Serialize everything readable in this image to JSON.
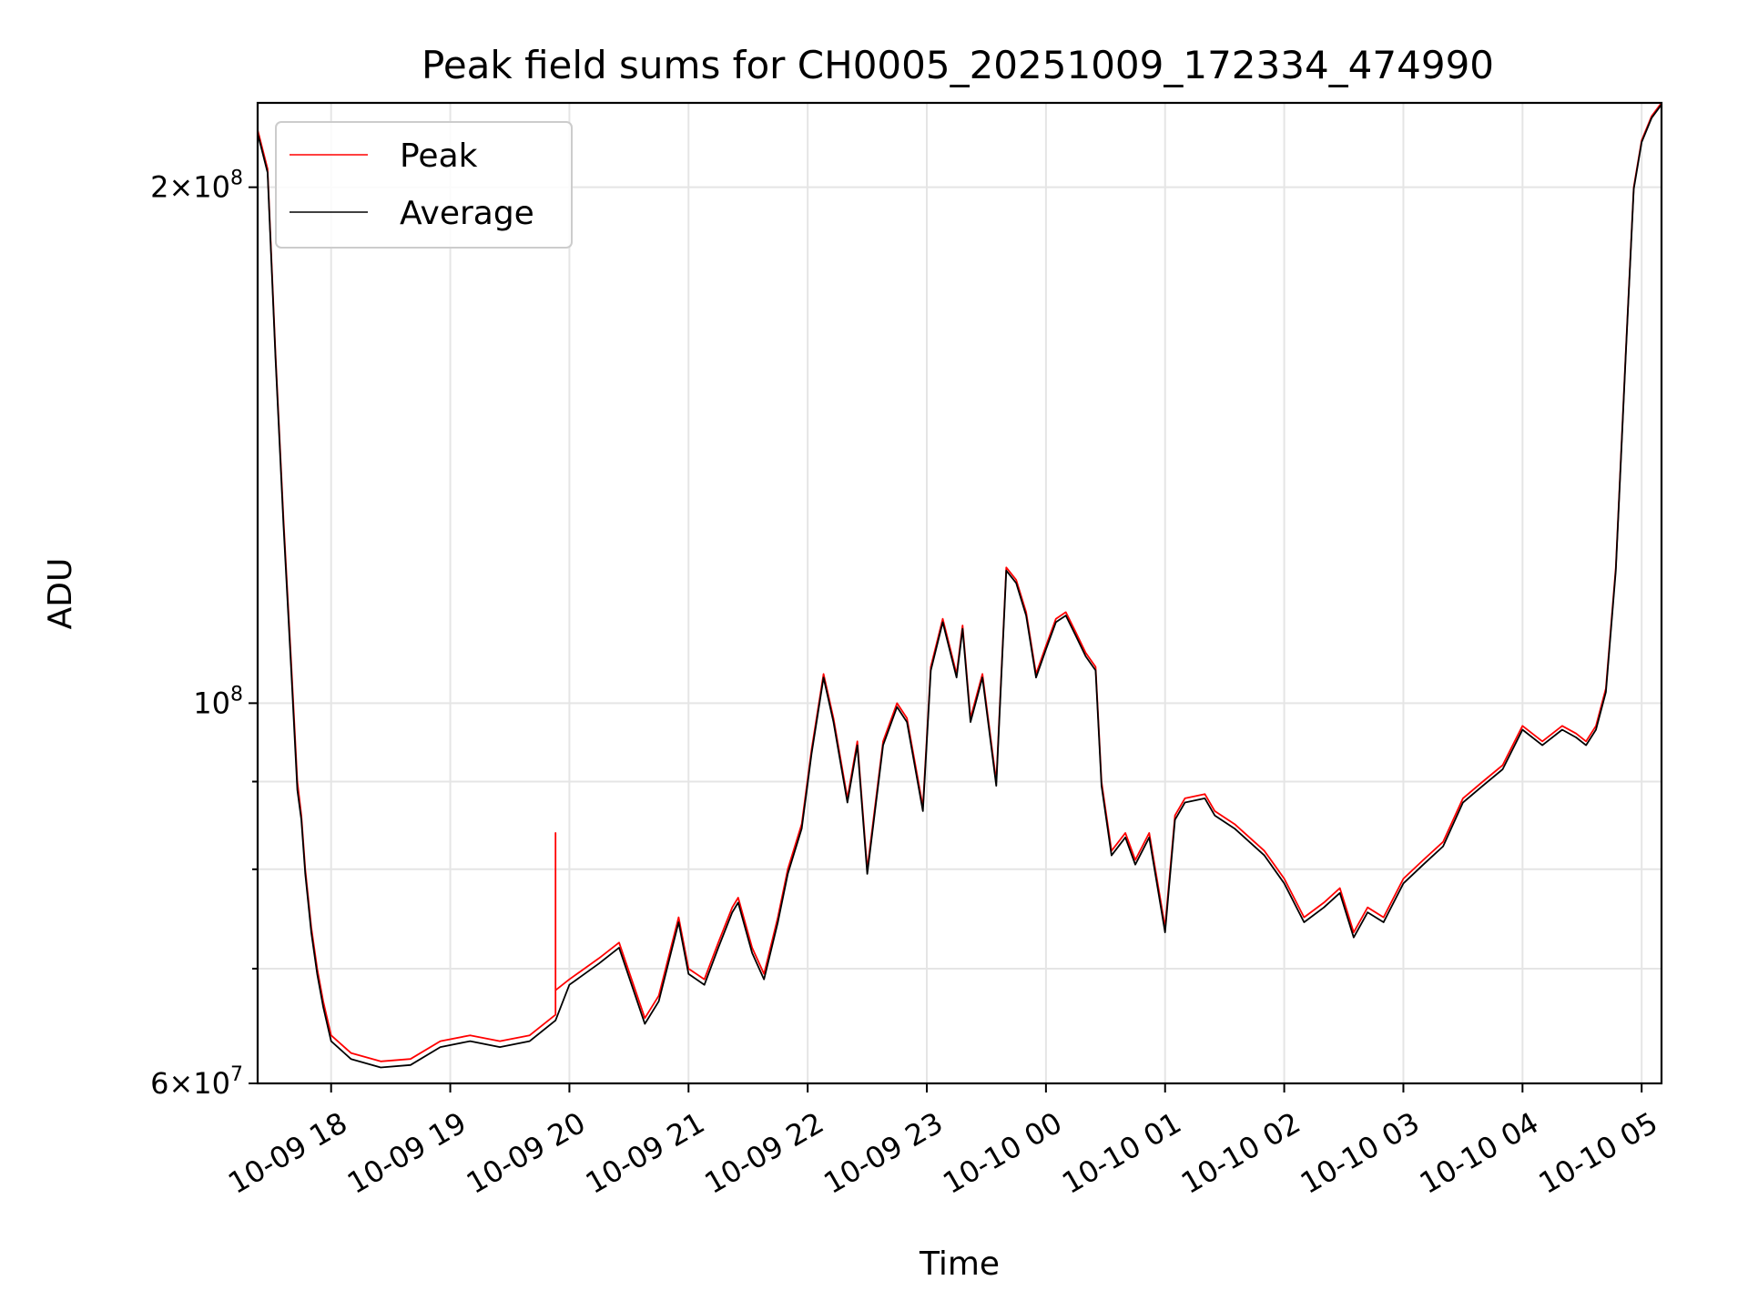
{
  "chart_data": {
    "type": "line",
    "title": "Peak field sums for CH0005_20251009_172334_474990",
    "xlabel": "Time",
    "ylabel": "ADU",
    "x_type": "datetime",
    "xlim": [
      "2025-10-09 17:23",
      "2025-10-10 05:10"
    ],
    "ylim": [
      60000000,
      224000000
    ],
    "yscale": "log",
    "grid": true,
    "legend_position": "upper-left",
    "x_ticks": [
      {
        "value": "2025-10-09 18:00",
        "label": "10-09 18"
      },
      {
        "value": "2025-10-09 19:00",
        "label": "10-09 19"
      },
      {
        "value": "2025-10-09 20:00",
        "label": "10-09 20"
      },
      {
        "value": "2025-10-09 21:00",
        "label": "10-09 21"
      },
      {
        "value": "2025-10-09 22:00",
        "label": "10-09 22"
      },
      {
        "value": "2025-10-09 23:00",
        "label": "10-09 23"
      },
      {
        "value": "2025-10-10 00:00",
        "label": "10-10 00"
      },
      {
        "value": "2025-10-10 01:00",
        "label": "10-10 01"
      },
      {
        "value": "2025-10-10 02:00",
        "label": "10-10 02"
      },
      {
        "value": "2025-10-10 03:00",
        "label": "10-10 03"
      },
      {
        "value": "2025-10-10 04:00",
        "label": "10-10 04"
      },
      {
        "value": "2025-10-10 05:00",
        "label": "10-10 05"
      }
    ],
    "y_major_ticks": [
      {
        "value": 60000000,
        "mantissa": "6",
        "exponent": "7"
      },
      {
        "value": 100000000,
        "mantissa": "",
        "exponent": "8"
      },
      {
        "value": 200000000,
        "mantissa": "2",
        "exponent": "8"
      }
    ],
    "y_minor_ticks": [
      70000000,
      80000000,
      90000000
    ],
    "series": [
      {
        "name": "Peak",
        "color": "#ff0000",
        "x": [
          "2025-10-09 17:23",
          "2025-10-09 17:28",
          "2025-10-09 17:32",
          "2025-10-09 17:36",
          "2025-10-09 17:40",
          "2025-10-09 17:43",
          "2025-10-09 17:45",
          "2025-10-09 17:47",
          "2025-10-09 17:50",
          "2025-10-09 17:53",
          "2025-10-09 17:56",
          "2025-10-09 18:00",
          "2025-10-09 18:10",
          "2025-10-09 18:25",
          "2025-10-09 18:40",
          "2025-10-09 18:55",
          "2025-10-09 19:10",
          "2025-10-09 19:25",
          "2025-10-09 19:40",
          "2025-10-09 19:53",
          "2025-10-09 19:53",
          "2025-10-09 19:53",
          "2025-10-09 20:00",
          "2025-10-09 20:15",
          "2025-10-09 20:25",
          "2025-10-09 20:38",
          "2025-10-09 20:45",
          "2025-10-09 20:55",
          "2025-10-09 21:00",
          "2025-10-09 21:08",
          "2025-10-09 21:15",
          "2025-10-09 21:22",
          "2025-10-09 21:25",
          "2025-10-09 21:32",
          "2025-10-09 21:38",
          "2025-10-09 21:45",
          "2025-10-09 21:50",
          "2025-10-09 21:57",
          "2025-10-09 22:02",
          "2025-10-09 22:08",
          "2025-10-09 22:13",
          "2025-10-09 22:20",
          "2025-10-09 22:25",
          "2025-10-09 22:30",
          "2025-10-09 22:38",
          "2025-10-09 22:45",
          "2025-10-09 22:50",
          "2025-10-09 22:58",
          "2025-10-09 23:02",
          "2025-10-09 23:08",
          "2025-10-09 23:15",
          "2025-10-09 23:18",
          "2025-10-09 23:22",
          "2025-10-09 23:28",
          "2025-10-09 23:35",
          "2025-10-09 23:40",
          "2025-10-09 23:45",
          "2025-10-09 23:50",
          "2025-10-09 23:55",
          "2025-10-10 00:00",
          "2025-10-10 00:05",
          "2025-10-10 00:10",
          "2025-10-10 00:15",
          "2025-10-10 00:20",
          "2025-10-10 00:25",
          "2025-10-10 00:28",
          "2025-10-10 00:33",
          "2025-10-10 00:40",
          "2025-10-10 00:45",
          "2025-10-10 00:52",
          "2025-10-10 01:00",
          "2025-10-10 01:05",
          "2025-10-10 01:10",
          "2025-10-10 01:20",
          "2025-10-10 01:25",
          "2025-10-10 01:35",
          "2025-10-10 01:50",
          "2025-10-10 02:00",
          "2025-10-10 02:10",
          "2025-10-10 02:20",
          "2025-10-10 02:28",
          "2025-10-10 02:35",
          "2025-10-10 02:42",
          "2025-10-10 02:50",
          "2025-10-10 03:00",
          "2025-10-10 03:10",
          "2025-10-10 03:20",
          "2025-10-10 03:30",
          "2025-10-10 03:40",
          "2025-10-10 03:50",
          "2025-10-10 04:00",
          "2025-10-10 04:10",
          "2025-10-10 04:20",
          "2025-10-10 04:27",
          "2025-10-10 04:32",
          "2025-10-10 04:37",
          "2025-10-10 04:42",
          "2025-10-10 04:47",
          "2025-10-10 04:52",
          "2025-10-10 04:56",
          "2025-10-10 05:00",
          "2025-10-10 05:05",
          "2025-10-10 05:10"
        ],
        "values": [
          216000000,
          205000000,
          160000000,
          128000000,
          105000000,
          90000000,
          86000000,
          80000000,
          74000000,
          70000000,
          67000000,
          64000000,
          62500000,
          61800000,
          62000000,
          63500000,
          64000000,
          63500000,
          64000000,
          65800000,
          84000000,
          68000000,
          69000000,
          71000000,
          72500000,
          65500000,
          67500000,
          75000000,
          70000000,
          69000000,
          72500000,
          76000000,
          77000000,
          72000000,
          69500000,
          75000000,
          80000000,
          85000000,
          94000000,
          104000000,
          98000000,
          88000000,
          95000000,
          80000000,
          95000000,
          100000000,
          98000000,
          87000000,
          105000000,
          112000000,
          104000000,
          111000000,
          98000000,
          104000000,
          90000000,
          120000000,
          118000000,
          113000000,
          104000000,
          108000000,
          112000000,
          113000000,
          110000000,
          107000000,
          105000000,
          90000000,
          82000000,
          84000000,
          81000000,
          84000000,
          74000000,
          86000000,
          88000000,
          88500000,
          86500000,
          85000000,
          82000000,
          79000000,
          75000000,
          76500000,
          78000000,
          73500000,
          76000000,
          75000000,
          79000000,
          81000000,
          83000000,
          88000000,
          90000000,
          92000000,
          97000000,
          95000000,
          97000000,
          96000000,
          95000000,
          97000000,
          102000000,
          120000000,
          160000000,
          200000000,
          213000000,
          220000000,
          224000000
        ]
      },
      {
        "name": "Average",
        "color": "#000000",
        "x": [
          "2025-10-09 17:23",
          "2025-10-09 17:28",
          "2025-10-09 17:32",
          "2025-10-09 17:36",
          "2025-10-09 17:40",
          "2025-10-09 17:43",
          "2025-10-09 17:45",
          "2025-10-09 17:47",
          "2025-10-09 17:50",
          "2025-10-09 17:53",
          "2025-10-09 17:56",
          "2025-10-09 18:00",
          "2025-10-09 18:10",
          "2025-10-09 18:25",
          "2025-10-09 18:40",
          "2025-10-09 18:55",
          "2025-10-09 19:10",
          "2025-10-09 19:25",
          "2025-10-09 19:40",
          "2025-10-09 19:53",
          "2025-10-09 20:00",
          "2025-10-09 20:15",
          "2025-10-09 20:25",
          "2025-10-09 20:38",
          "2025-10-09 20:45",
          "2025-10-09 20:55",
          "2025-10-09 21:00",
          "2025-10-09 21:08",
          "2025-10-09 21:15",
          "2025-10-09 21:22",
          "2025-10-09 21:25",
          "2025-10-09 21:32",
          "2025-10-09 21:38",
          "2025-10-09 21:45",
          "2025-10-09 21:50",
          "2025-10-09 21:57",
          "2025-10-09 22:02",
          "2025-10-09 22:08",
          "2025-10-09 22:13",
          "2025-10-09 22:20",
          "2025-10-09 22:25",
          "2025-10-09 22:30",
          "2025-10-09 22:38",
          "2025-10-09 22:45",
          "2025-10-09 22:50",
          "2025-10-09 22:58",
          "2025-10-09 23:02",
          "2025-10-09 23:08",
          "2025-10-09 23:15",
          "2025-10-09 23:18",
          "2025-10-09 23:22",
          "2025-10-09 23:28",
          "2025-10-09 23:35",
          "2025-10-09 23:40",
          "2025-10-09 23:45",
          "2025-10-09 23:50",
          "2025-10-09 23:55",
          "2025-10-10 00:00",
          "2025-10-10 00:05",
          "2025-10-10 00:10",
          "2025-10-10 00:15",
          "2025-10-10 00:20",
          "2025-10-10 00:25",
          "2025-10-10 00:28",
          "2025-10-10 00:33",
          "2025-10-10 00:40",
          "2025-10-10 00:45",
          "2025-10-10 00:52",
          "2025-10-10 01:00",
          "2025-10-10 01:05",
          "2025-10-10 01:10",
          "2025-10-10 01:20",
          "2025-10-10 01:25",
          "2025-10-10 01:35",
          "2025-10-10 01:50",
          "2025-10-10 02:00",
          "2025-10-10 02:10",
          "2025-10-10 02:20",
          "2025-10-10 02:28",
          "2025-10-10 02:35",
          "2025-10-10 02:42",
          "2025-10-10 02:50",
          "2025-10-10 03:00",
          "2025-10-10 03:10",
          "2025-10-10 03:20",
          "2025-10-10 03:30",
          "2025-10-10 03:40",
          "2025-10-10 03:50",
          "2025-10-10 04:00",
          "2025-10-10 04:10",
          "2025-10-10 04:20",
          "2025-10-10 04:27",
          "2025-10-10 04:32",
          "2025-10-10 04:37",
          "2025-10-10 04:42",
          "2025-10-10 04:47",
          "2025-10-10 04:52",
          "2025-10-10 04:56",
          "2025-10-10 05:00",
          "2025-10-10 05:05",
          "2025-10-10 05:10"
        ],
        "values": [
          215000000,
          204000000,
          159000000,
          127000000,
          104000000,
          89000000,
          85500000,
          79500000,
          73500000,
          69500000,
          66500000,
          63500000,
          62000000,
          61300000,
          61500000,
          63000000,
          63500000,
          63000000,
          63500000,
          65300000,
          68500000,
          70500000,
          72000000,
          65000000,
          67000000,
          74500000,
          69500000,
          68500000,
          72000000,
          75500000,
          76500000,
          71500000,
          69000000,
          74500000,
          79500000,
          84500000,
          93500000,
          103500000,
          97500000,
          87500000,
          94500000,
          79500000,
          94500000,
          99500000,
          97500000,
          86500000,
          104500000,
          111500000,
          103500000,
          110500000,
          97500000,
          103500000,
          89500000,
          119500000,
          117500000,
          112500000,
          103500000,
          107500000,
          111500000,
          112500000,
          109500000,
          106500000,
          104500000,
          89500000,
          81500000,
          83500000,
          80500000,
          83500000,
          73500000,
          85500000,
          87500000,
          88000000,
          86000000,
          84500000,
          81500000,
          78500000,
          74500000,
          76000000,
          77500000,
          73000000,
          75500000,
          74500000,
          78500000,
          80500000,
          82500000,
          87500000,
          89500000,
          91500000,
          96500000,
          94500000,
          96500000,
          95500000,
          94500000,
          96500000,
          101500000,
          119500000,
          159500000,
          199500000,
          212500000,
          219500000,
          223500000
        ]
      }
    ]
  }
}
